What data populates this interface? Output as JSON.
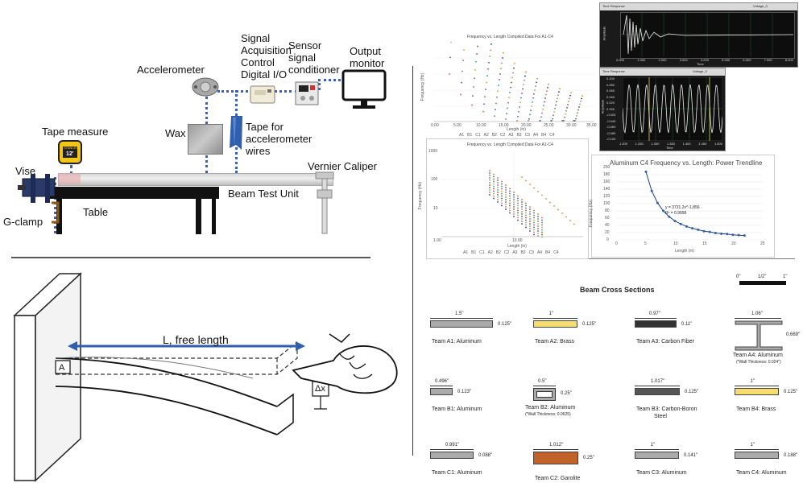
{
  "setup": {
    "labels": {
      "signal": "Signal",
      "acquisition": "Acquisition",
      "control": "Control",
      "digital_io": "Digital I/O",
      "sensor": "Sensor",
      "signal2": "signal",
      "conditioner": "conditioner",
      "output": "Output",
      "monitor": "monitor",
      "accelerometer": "Accelerometer",
      "tape_measure": "Tape measure",
      "wax": "Wax",
      "tape_for": "Tape for",
      "accelerometer2": "accelerometer",
      "wires": "wires",
      "vise": "Vise",
      "vernier": "Vernier Caliper",
      "beam_test_unit": "Beam Test Unit",
      "table": "Table",
      "g_clamp": "G-clamp",
      "tape_brand": "STANLEY",
      "tape_size": "12'"
    }
  },
  "beam_diagram": {
    "free_length": "L, free length",
    "a_label": "A",
    "dx_label": "Δx"
  },
  "plot1": {
    "title": "Frequency vs. Length Compiled Data For A1-C4",
    "ylabel": "Frequency (Hz)",
    "xlabel": "Length (in)",
    "xticks": [
      "0.00",
      "5.00",
      "10.00",
      "15.00",
      "20.00",
      "25.00",
      "30.00",
      "35.00"
    ],
    "legend": [
      "A1",
      "B1",
      "C1",
      "A2",
      "B2",
      "C2",
      "A3",
      "B3",
      "C3",
      "A4",
      "B4",
      "C4"
    ]
  },
  "plot2": {
    "title": "Frequency vs. Length Compiled Data For A1-C4",
    "ylabel": "Frequency (Hz)",
    "xlabel": "Length (in)",
    "yticks": [
      "1000",
      "100",
      "10"
    ],
    "xticks": [
      "1.00",
      "10.00"
    ],
    "legend": [
      "A1",
      "B1",
      "C1",
      "A2",
      "B2",
      "C2",
      "A3",
      "B3",
      "C3",
      "A4",
      "B4",
      "C4"
    ]
  },
  "scope1": {
    "header": "Time Response",
    "channel": "Voltage_0",
    "ylabel": "Amplitude",
    "xlabel": "Time",
    "xticks": [
      "0.000",
      "1.000",
      "2.000",
      "3.000",
      "4.000",
      "5.000",
      "6.000",
      "7.000",
      "8.000"
    ]
  },
  "scope2": {
    "header": "Time Response",
    "channel": "Voltage_0",
    "ylabel": "Amplitude",
    "xlabel": "Time",
    "yticks": [
      "0.100",
      "0.080",
      "0.060",
      "0.040",
      "0.020",
      "0.000",
      "-0.020",
      "-0.040",
      "-0.060",
      "-0.080",
      "-0.100"
    ],
    "xticks": [
      "1.200",
      "1.250",
      "1.300",
      "1.350",
      "1.400",
      "1.450",
      "1.500"
    ]
  },
  "chart_data": [
    {
      "type": "scatter",
      "title": "Aluminum C4 Frequency vs. Length: Power Trendline",
      "xlabel": "Length (in)",
      "ylabel": "Frequency (Hz)",
      "xlim": [
        0,
        25
      ],
      "ylim": [
        0,
        200
      ],
      "xticks": [
        "0",
        "5",
        "10",
        "15",
        "20",
        "25"
      ],
      "yticks": [
        "0",
        "20",
        "40",
        "60",
        "80",
        "100",
        "120",
        "140",
        "160",
        "180",
        "200"
      ],
      "equation": "y = 3731.2x^-1.856",
      "r2": "R² = 0.9999",
      "x": [
        5,
        6,
        7,
        8,
        9,
        10,
        11,
        12,
        13,
        14,
        15,
        16,
        17,
        18,
        19,
        20,
        21,
        22
      ],
      "y": [
        188,
        135,
        102,
        80,
        64,
        52,
        44,
        37,
        32,
        28,
        24,
        22,
        19,
        17,
        16,
        14,
        13,
        12
      ]
    }
  ],
  "cross_sections": {
    "title": "Beam Cross Sections",
    "scale_labels": [
      "0\"",
      "1/2\"",
      "1\""
    ],
    "items": [
      {
        "team": "Team A1: Aluminum",
        "width": "1.5\"",
        "height": "0.125\"",
        "color": "#aaaaaa"
      },
      {
        "team": "Team A2: Brass",
        "width": "1\"",
        "height": "0.125\"",
        "color": "#f7dc6f"
      },
      {
        "team": "Team A3: Carbon Fiber",
        "width": "0.97\"",
        "height": "0.11\"",
        "color": "#333333"
      },
      {
        "team": "Team A4: Aluminum",
        "width": "1.06\"",
        "height": "0.669\"",
        "note": "(*Wall Thickness: 0.024\")",
        "color": "#aaaaaa"
      },
      {
        "team": "Team B1: Aluminum",
        "width": "0.496\"",
        "height": "0.123\"",
        "color": "#aaaaaa"
      },
      {
        "team": "Team B2: Aluminum",
        "width": "0.5\"",
        "height": "0.25\"",
        "note": "(*Wall Thickness: 0.0625)",
        "color": "#aaaaaa"
      },
      {
        "team": "Team B3: Carbon-Boron",
        "team2": "Steel",
        "width": "1.017\"",
        "height": "0.125\"",
        "color": "#555555"
      },
      {
        "team": "Team B4: Brass",
        "width": "1\"",
        "height": "0.125\"",
        "color": "#f7dc6f"
      },
      {
        "team": "Team C1: Aluminum",
        "width": "0.991\"",
        "height": "0.088\"",
        "color": "#aaaaaa"
      },
      {
        "team": "Team C2: Garolite",
        "width": "1.012\"",
        "height": "0.25\"",
        "color": "#c0622a"
      },
      {
        "team": "Team C3: Aluminum",
        "width": "1\"",
        "height": "0.141\"",
        "color": "#aaaaaa"
      },
      {
        "team": "Team C4: Aluminum",
        "width": "1\"",
        "height": "0.188\"",
        "color": "#aaaaaa"
      }
    ]
  }
}
